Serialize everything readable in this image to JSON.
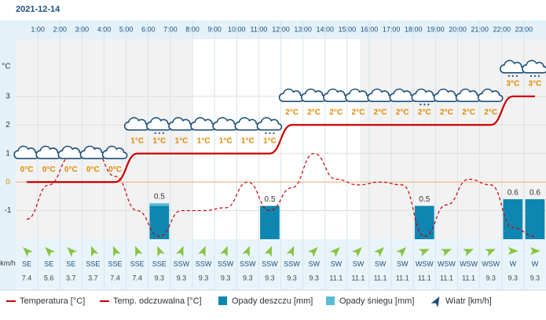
{
  "chart_data": {
    "type": "weather",
    "date": "2021-12-14",
    "hour_labels": [
      "1:00",
      "2:00",
      "3:00",
      "4:00",
      "5:00",
      "6:00",
      "7:00",
      "8:00",
      "9:00",
      "10:00",
      "11:00",
      "12:00",
      "13:00",
      "14:00",
      "15:00",
      "16:00",
      "17:00",
      "18:00",
      "19:00",
      "20:00",
      "21:00",
      "22:00",
      "23:00"
    ],
    "y_unit": "°C",
    "ylim": [
      -2,
      5
    ],
    "yticks": [
      -1,
      0,
      1,
      2,
      3
    ],
    "y2lim": [
      0,
      3
    ],
    "grid": true,
    "series": [
      {
        "name": "Temperatura [°C]",
        "color": "#cc0000",
        "values": [
          0,
          0,
          0,
          0,
          0,
          1,
          1,
          1,
          1,
          1,
          1,
          1,
          2,
          2,
          2,
          2,
          2,
          2,
          2,
          2,
          2,
          2,
          3,
          3
        ],
        "value_labels": [
          "0°C",
          "0°C",
          "0°C",
          "0°C",
          "0°C",
          "1°C",
          "1°C",
          "1°C",
          "1°C",
          "1°C",
          "1°C",
          "1°C",
          "2°C",
          "2°C",
          "2°C",
          "2°C",
          "2°C",
          "2°C",
          "2°C",
          "2°C",
          "2°C",
          "2°C",
          "3°C",
          "3°C"
        ]
      },
      {
        "name": "Temp. odczuwalna [°C]",
        "color": "#cc0000",
        "dashed": true,
        "values": [
          -1.3,
          -0.1,
          0.9,
          1.2,
          0.2,
          -1,
          -1.9,
          -1,
          -1,
          -0.9,
          0,
          -1,
          -0.2,
          1,
          0.1,
          -0.1,
          0,
          -0.1,
          -1.9,
          -0.8,
          0.1,
          -0.1,
          -1.6,
          -1.9
        ]
      },
      {
        "name": "Opady deszczu [mm]",
        "color": "#0e86b1",
        "axis": "y2",
        "values": [
          null,
          null,
          null,
          null,
          null,
          null,
          0.5,
          null,
          null,
          null,
          null,
          0.5,
          null,
          null,
          null,
          null,
          null,
          null,
          0.5,
          null,
          null,
          null,
          0.6,
          0.6
        ]
      },
      {
        "name": "Opady śniegu [mm]",
        "color": "#5bbcd6",
        "axis": "y2",
        "values": [
          null,
          null,
          null,
          null,
          null,
          null,
          0.04,
          null,
          null,
          null,
          null,
          null,
          null,
          null,
          null,
          null,
          null,
          null,
          null,
          null,
          null,
          null,
          null,
          null
        ]
      }
    ],
    "wind": {
      "name": "Wiatr [km/h]",
      "unit": "km/h",
      "directions": [
        "SE",
        "SE",
        "SE",
        "SSE",
        "SSE",
        "SSE",
        "SSE",
        "SSW",
        "SSW",
        "SSW",
        "SSW",
        "SSW",
        "SSW",
        "SW",
        "SW",
        "SW",
        "SW",
        "SW",
        "WSW",
        "WSW",
        "WSW",
        "WSW",
        "W",
        "W"
      ],
      "values": [
        7.4,
        5.6,
        3.7,
        3.7,
        7.4,
        7.4,
        9.3,
        9.3,
        9.3,
        9.3,
        9.3,
        9.3,
        9.3,
        9.3,
        11.1,
        11.1,
        11.1,
        11.1,
        11.1,
        11.1,
        11.1,
        9.3,
        9.3,
        9.3
      ]
    }
  }
}
